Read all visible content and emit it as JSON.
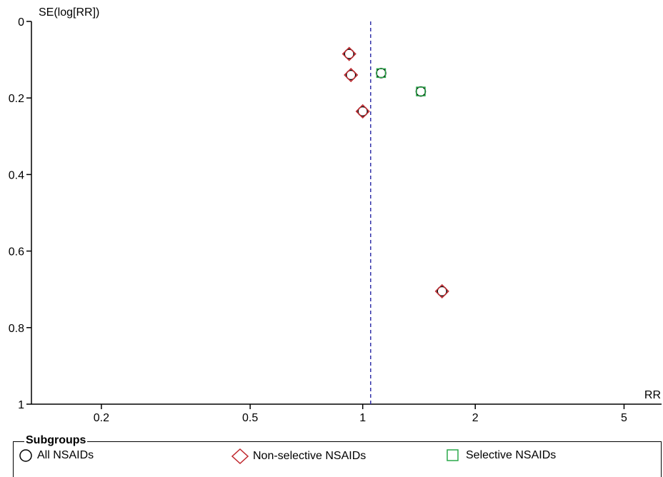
{
  "chart_data": {
    "type": "scatter",
    "title": "",
    "xlabel": "RR",
    "ylabel": "SE(log[RR])",
    "x_scale": "log",
    "xlim": [
      0.13,
      6.3
    ],
    "ylim": [
      0,
      1
    ],
    "y_inverted": true,
    "x_ticks": [
      0.2,
      0.5,
      1,
      2,
      5
    ],
    "x_tick_labels": [
      "0.2",
      "0.5",
      "1",
      "2",
      "5"
    ],
    "y_ticks": [
      0,
      0.2,
      0.4,
      0.6,
      0.8,
      1
    ],
    "y_tick_labels": [
      "0",
      "0.2",
      "0.4",
      "0.6",
      "0.8",
      "1"
    ],
    "reference_line": {
      "x": 1.05,
      "style": "dashed",
      "color": "#3333aa"
    },
    "series": [
      {
        "name": "Non-selective NSAIDs",
        "marker": "diamond",
        "color": "#c0282e",
        "points": [
          {
            "x": 0.92,
            "y": 0.085
          },
          {
            "x": 0.93,
            "y": 0.14
          },
          {
            "x": 1.0,
            "y": 0.235
          },
          {
            "x": 1.63,
            "y": 0.705
          }
        ]
      },
      {
        "name": "Selective NSAIDs",
        "marker": "square",
        "color": "#2aa84a",
        "points": [
          {
            "x": 1.12,
            "y": 0.135
          },
          {
            "x": 1.43,
            "y": 0.183
          }
        ]
      }
    ],
    "legend": {
      "title": "Subgroups",
      "placement": "bottom",
      "items": [
        {
          "label": "All NSAIDs",
          "marker": "circle",
          "color": "#000000"
        },
        {
          "label": "Non-selective NSAIDs",
          "marker": "diamond",
          "color": "#c0282e"
        },
        {
          "label": "Selective NSAIDs",
          "marker": "square",
          "color": "#2aa84a"
        }
      ]
    }
  }
}
